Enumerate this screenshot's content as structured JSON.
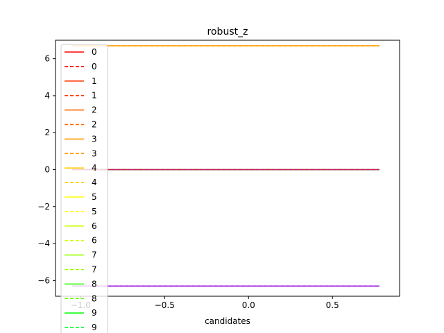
{
  "chart_data": {
    "type": "line",
    "title": "robust_z",
    "xlabel": "candidates",
    "ylabel": "",
    "xlim": [
      -1.15,
      0.9
    ],
    "ylim": [
      -6.85,
      7.0
    ],
    "xticks": [
      -1.0,
      -0.5,
      0.0,
      0.5
    ],
    "xtick_labels": [
      "−1.0",
      "−0.5",
      "0.0",
      "0.5"
    ],
    "yticks": [
      -6,
      -4,
      -2,
      0,
      2,
      4,
      6
    ],
    "ytick_labels": [
      "−6",
      "−4",
      "−2",
      "0",
      "2",
      "4",
      "6"
    ],
    "grid": false,
    "legend_position": "upper-left",
    "x_range": [
      -1.05,
      0.78
    ],
    "series": [
      {
        "name": "0",
        "style": "solid",
        "color": "#ff0000",
        "y": 0
      },
      {
        "name": "0",
        "style": "dashed",
        "color": "#ff0000",
        "y": 0
      },
      {
        "name": "1",
        "style": "solid",
        "color": "#ff3300",
        "y": 0
      },
      {
        "name": "1",
        "style": "dashed",
        "color": "#ff3300",
        "y": 0
      },
      {
        "name": "2",
        "style": "solid",
        "color": "#ff6600",
        "y": 0
      },
      {
        "name": "2",
        "style": "dashed",
        "color": "#ff6600",
        "y": 0
      },
      {
        "name": "3",
        "style": "solid",
        "color": "#ff9900",
        "y": 6.7
      },
      {
        "name": "3",
        "style": "dashed",
        "color": "#ff9900",
        "y": 6.7
      },
      {
        "name": "4",
        "style": "solid",
        "color": "#ffcc00",
        "y": 0
      },
      {
        "name": "4",
        "style": "dashed",
        "color": "#ffcc00",
        "y": 0
      },
      {
        "name": "5",
        "style": "solid",
        "color": "#ffff00",
        "y": 0
      },
      {
        "name": "5",
        "style": "dashed",
        "color": "#ffff00",
        "y": 0
      },
      {
        "name": "6",
        "style": "solid",
        "color": "#ccff00",
        "y": 0
      },
      {
        "name": "6",
        "style": "dashed",
        "color": "#ccff00",
        "y": 0
      },
      {
        "name": "7",
        "style": "solid",
        "color": "#99ff00",
        "y": 0
      },
      {
        "name": "7",
        "style": "dashed",
        "color": "#99ff00",
        "y": 0
      },
      {
        "name": "8",
        "style": "solid",
        "color": "#33ff00",
        "y": 0
      },
      {
        "name": "8",
        "style": "dashed",
        "color": "#66ff00",
        "y": 0
      },
      {
        "name": "9",
        "style": "solid",
        "color": "#00ff00",
        "y": 0
      },
      {
        "name": "9",
        "style": "dashed",
        "color": "#00ff33",
        "y": 0
      }
    ],
    "extra_lines": [
      {
        "style": "solid",
        "color": "#dc143c",
        "y": 0
      },
      {
        "style": "dashed",
        "color": "#c71585",
        "y": 0
      },
      {
        "style": "solid",
        "color": "#9400d3",
        "y": -6.3
      },
      {
        "style": "dashed",
        "color": "#a020f0",
        "y": -6.3
      }
    ]
  }
}
